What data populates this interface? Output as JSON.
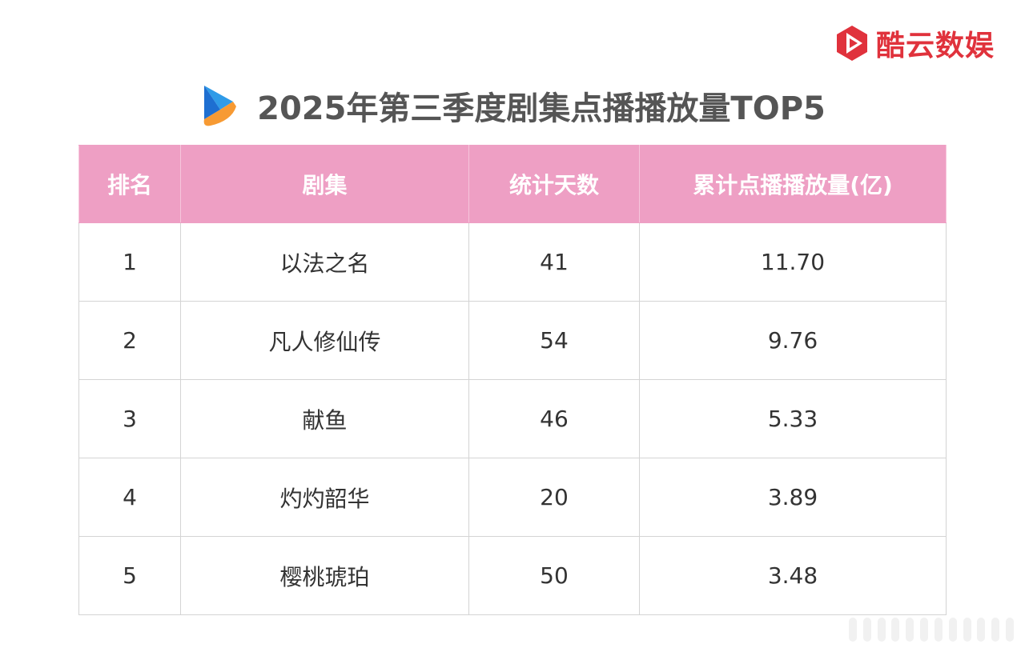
{
  "brand": {
    "name": "酷云数娱",
    "icon": "play-logo-icon",
    "color": "#e0323c"
  },
  "title": {
    "text": "2025年第三季度剧集点播播放量TOP5",
    "icon": "play-arrow-icon"
  },
  "table": {
    "header_color": "#ee9fc4",
    "columns": [
      "排名",
      "剧集",
      "统计天数",
      "累计点播播放量(亿)"
    ],
    "rows": [
      {
        "rank": "1",
        "series": "以法之名",
        "days": "41",
        "plays": "11.70"
      },
      {
        "rank": "2",
        "series": "凡人修仙传",
        "days": "54",
        "plays": "9.76"
      },
      {
        "rank": "3",
        "series": "献鱼",
        "days": "46",
        "plays": "5.33"
      },
      {
        "rank": "4",
        "series": "灼灼韶华",
        "days": "20",
        "plays": "3.89"
      },
      {
        "rank": "5",
        "series": "樱桃琥珀",
        "days": "50",
        "plays": "3.48"
      }
    ]
  }
}
